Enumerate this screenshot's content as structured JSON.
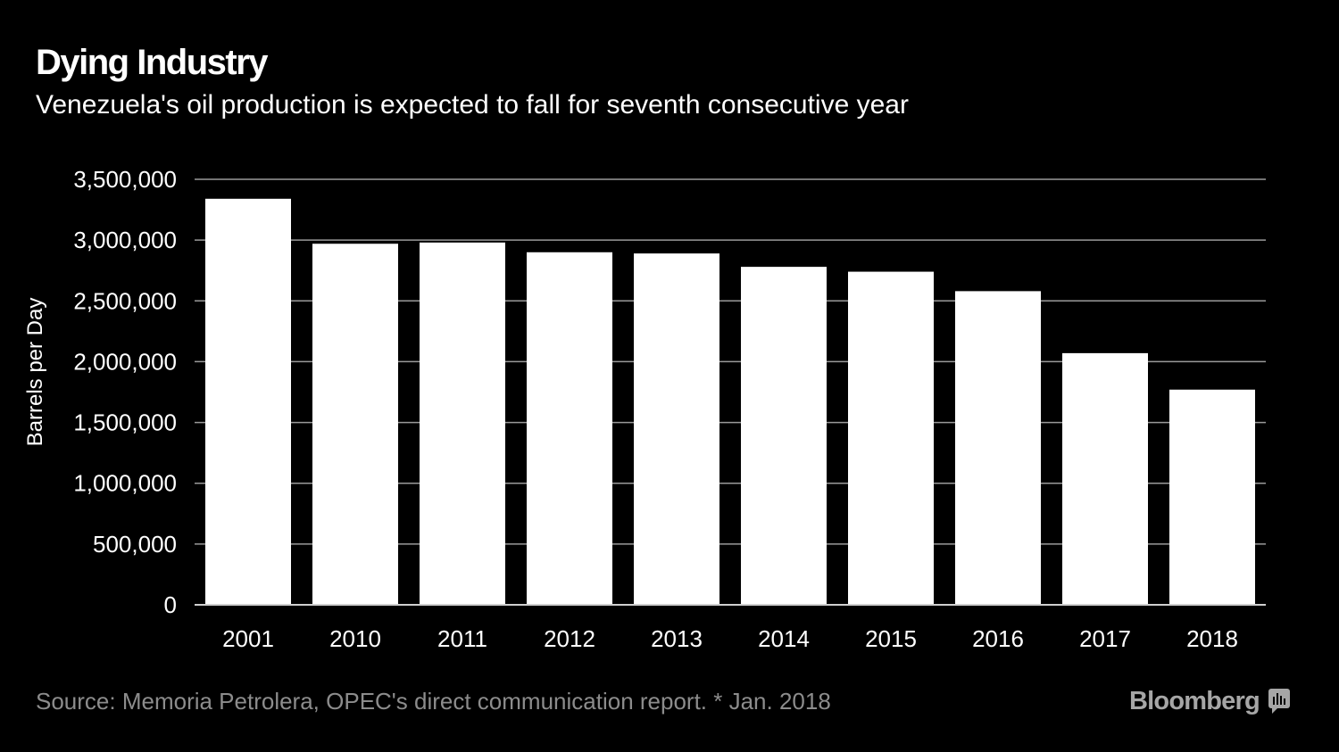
{
  "header": {
    "title": "Dying Industry",
    "subtitle": "Venezuela's oil production is expected to fall for seventh consecutive year"
  },
  "chart_data": {
    "type": "bar",
    "categories": [
      "2001",
      "2010",
      "2011",
      "2012",
      "2013",
      "2014",
      "2015",
      "2016",
      "2017",
      "2018"
    ],
    "values": [
      3340000,
      2970000,
      2980000,
      2900000,
      2890000,
      2780000,
      2740000,
      2580000,
      2070000,
      1770000
    ],
    "ylabel": "Barrels per Day",
    "xlabel": "",
    "ylim": [
      0,
      3500000
    ],
    "yticks": [
      0,
      500000,
      1000000,
      1500000,
      2000000,
      2500000,
      3000000,
      3500000
    ],
    "ytick_labels": [
      "0",
      "500,000",
      "1,000,000",
      "1,500,000",
      "2,000,000",
      "2,500,000",
      "3,000,000",
      "3,500,000"
    ],
    "grid": true,
    "bar_color": "#ffffff",
    "grid_color": "#9a9a9a"
  },
  "footer": {
    "source": "Source: Memoria Petrolera, OPEC's direct communication report. * Jan. 2018",
    "brand": "Bloomberg",
    "brand_icon": "bloomberg-terminal-icon"
  }
}
